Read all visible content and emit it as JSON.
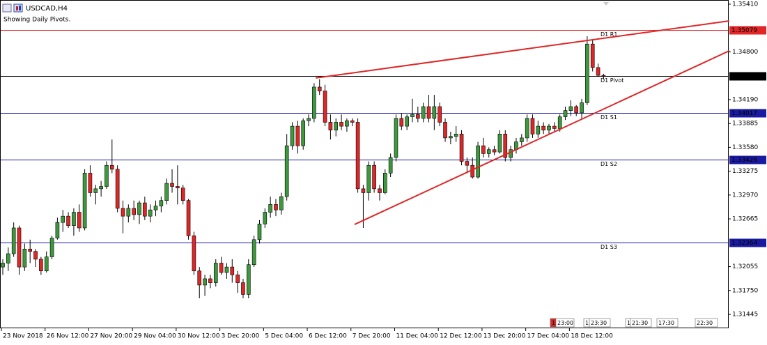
{
  "chart_data": {
    "type": "candlestick",
    "title": "USDCAD,H4",
    "subtitle": "Showing Daily Pivots.",
    "categories": [
      "23 Nov 2018",
      null,
      null,
      null,
      null,
      null,
      null,
      null,
      "26 Nov 12:00",
      null,
      null,
      null,
      null,
      null,
      null,
      null,
      "27 Nov 20:00",
      null,
      null,
      null,
      null,
      null,
      null,
      null,
      "29 Nov 04:00",
      null,
      null,
      null,
      null,
      null,
      null,
      null,
      "30 Nov 12:00",
      null,
      null,
      null,
      null,
      null,
      null,
      null,
      "3 Dec 20:00",
      null,
      null,
      null,
      null,
      null,
      null,
      null,
      "5 Dec 04:00",
      null,
      null,
      null,
      null,
      null,
      null,
      null,
      "6 Dec 12:00",
      null,
      null,
      null,
      null,
      null,
      null,
      null,
      "7 Dec 20:00",
      null,
      null,
      null,
      null,
      null,
      null,
      null,
      "11 Dec 04:00",
      null,
      null,
      null,
      null,
      null,
      null,
      null,
      "12 Dec 12:00",
      null,
      null,
      null,
      null,
      null,
      null,
      null,
      "13 Dec 20:00",
      null,
      null,
      null,
      null,
      null,
      null,
      null,
      "17 Dec 04:00",
      null,
      null,
      null,
      null,
      null,
      null,
      null,
      "18 Dec 12:00",
      null,
      null,
      null,
      null,
      null,
      null
    ],
    "open": [
      1.3205,
      1.321,
      1.3222,
      1.3255,
      1.3205,
      1.3228,
      1.3225,
      1.3215,
      1.32,
      1.3218,
      1.3242,
      1.3262,
      1.327,
      1.3258,
      1.3275,
      1.3255,
      1.3325,
      1.33,
      1.3305,
      1.3308,
      1.3335,
      1.333,
      1.328,
      1.327,
      1.328,
      1.3272,
      1.3287,
      1.327,
      1.3278,
      1.3283,
      1.329,
      1.3312,
      1.3308,
      1.3306,
      1.329,
      1.3245,
      1.32,
      1.3182,
      1.319,
      1.3185,
      1.321,
      1.3198,
      1.3205,
      1.3195,
      1.3185,
      1.317,
      1.3208,
      1.324,
      1.326,
      1.3275,
      1.3285,
      1.3278,
      1.3295,
      1.336,
      1.3385,
      1.336,
      1.3392,
      1.3395,
      1.3435,
      1.343,
      1.339,
      1.338,
      1.339,
      1.3385,
      1.3392,
      1.339,
      1.3305,
      1.33,
      1.3335,
      1.3305,
      1.33,
      1.3325,
      1.3345,
      1.3395,
      1.3385,
      1.3397,
      1.34,
      1.3395,
      1.341,
      1.3395,
      1.341,
      1.339,
      1.337,
      1.3372,
      1.3375,
      1.334,
      1.3335,
      1.332,
      1.336,
      1.335,
      1.3355,
      1.3352,
      1.3375,
      1.3345,
      1.3355,
      1.3365,
      1.337,
      1.3395,
      1.3375,
      1.3385,
      1.338,
      1.3385,
      1.3382,
      1.3397,
      1.3405,
      1.341,
      1.3402,
      1.3415,
      1.349,
      1.346,
      1.345
    ],
    "high": [
      1.3215,
      1.323,
      1.3262,
      1.3258,
      1.3235,
      1.324,
      1.3228,
      1.3218,
      1.3225,
      1.3245,
      1.3268,
      1.3278,
      1.3275,
      1.328,
      1.3285,
      1.333,
      1.3335,
      1.331,
      1.3315,
      1.334,
      1.3368,
      1.3335,
      1.329,
      1.3285,
      1.329,
      1.329,
      1.3295,
      1.3285,
      1.329,
      1.3295,
      1.3318,
      1.333,
      1.3335,
      1.331,
      1.3292,
      1.325,
      1.3205,
      1.3195,
      1.3195,
      1.3215,
      1.3218,
      1.321,
      1.3215,
      1.32,
      1.319,
      1.3215,
      1.3245,
      1.3265,
      1.328,
      1.3295,
      1.3292,
      1.33,
      1.3375,
      1.339,
      1.3392,
      1.3395,
      1.34,
      1.344,
      1.3445,
      1.3438,
      1.34,
      1.3395,
      1.34,
      1.3395,
      1.3395,
      1.3395,
      1.331,
      1.334,
      1.334,
      1.331,
      1.333,
      1.335,
      1.34,
      1.3402,
      1.34,
      1.342,
      1.341,
      1.3415,
      1.3425,
      1.3425,
      1.3415,
      1.3395,
      1.3378,
      1.3385,
      1.338,
      1.3345,
      1.3345,
      1.3365,
      1.337,
      1.3358,
      1.336,
      1.338,
      1.338,
      1.336,
      1.337,
      1.3375,
      1.34,
      1.34,
      1.3392,
      1.339,
      1.3388,
      1.339,
      1.34,
      1.341,
      1.3418,
      1.3412,
      1.342,
      1.35,
      1.3496,
      1.3465,
      1.3452
    ],
    "low": [
      1.3195,
      1.32,
      1.3218,
      1.3195,
      1.32,
      1.321,
      1.3205,
      1.3195,
      1.3198,
      1.3215,
      1.324,
      1.325,
      1.3255,
      1.3245,
      1.325,
      1.3252,
      1.3295,
      1.3285,
      1.3295,
      1.3305,
      1.3325,
      1.3275,
      1.3248,
      1.3262,
      1.3265,
      1.326,
      1.3265,
      1.3262,
      1.327,
      1.3275,
      1.3285,
      1.33,
      1.3285,
      1.3285,
      1.324,
      1.3195,
      1.3165,
      1.3168,
      1.3178,
      1.318,
      1.3195,
      1.319,
      1.3185,
      1.3172,
      1.3165,
      1.3165,
      1.3205,
      1.3235,
      1.3255,
      1.3268,
      1.327,
      1.3272,
      1.329,
      1.3355,
      1.335,
      1.3355,
      1.3385,
      1.339,
      1.3425,
      1.3385,
      1.3368,
      1.3372,
      1.338,
      1.3378,
      1.3385,
      1.33,
      1.3255,
      1.329,
      1.33,
      1.329,
      1.3298,
      1.332,
      1.334,
      1.338,
      1.338,
      1.339,
      1.339,
      1.339,
      1.339,
      1.338,
      1.3385,
      1.3365,
      1.3362,
      1.3365,
      1.3335,
      1.3325,
      1.3318,
      1.3318,
      1.3345,
      1.3345,
      1.3348,
      1.335,
      1.334,
      1.334,
      1.335,
      1.336,
      1.3365,
      1.337,
      1.337,
      1.3375,
      1.3375,
      1.3378,
      1.3378,
      1.3393,
      1.3398,
      1.3398,
      1.3395,
      1.3412,
      1.3455,
      1.3448,
      1.3445
    ],
    "close": [
      1.321,
      1.3222,
      1.3255,
      1.3205,
      1.3228,
      1.3225,
      1.3215,
      1.32,
      1.3218,
      1.3242,
      1.3262,
      1.327,
      1.3258,
      1.3275,
      1.3255,
      1.3325,
      1.33,
      1.3305,
      1.3308,
      1.3335,
      1.333,
      1.328,
      1.327,
      1.328,
      1.3272,
      1.3287,
      1.327,
      1.3278,
      1.3283,
      1.329,
      1.3312,
      1.3308,
      1.3306,
      1.329,
      1.3245,
      1.32,
      1.3182,
      1.319,
      1.3185,
      1.321,
      1.3198,
      1.3205,
      1.3195,
      1.3185,
      1.317,
      1.3208,
      1.324,
      1.326,
      1.3275,
      1.3285,
      1.3278,
      1.3295,
      1.336,
      1.3385,
      1.336,
      1.3392,
      1.3395,
      1.3435,
      1.343,
      1.339,
      1.338,
      1.339,
      1.3385,
      1.3392,
      1.339,
      1.3305,
      1.33,
      1.3335,
      1.3305,
      1.33,
      1.3325,
      1.3345,
      1.3395,
      1.3385,
      1.3397,
      1.34,
      1.3395,
      1.341,
      1.3395,
      1.341,
      1.339,
      1.337,
      1.3372,
      1.3375,
      1.334,
      1.3335,
      1.332,
      1.336,
      1.335,
      1.3355,
      1.3352,
      1.3375,
      1.3345,
      1.3355,
      1.3365,
      1.337,
      1.3395,
      1.3375,
      1.3385,
      1.338,
      1.3385,
      1.3382,
      1.3397,
      1.3405,
      1.341,
      1.3402,
      1.3415,
      1.349,
      1.346,
      1.345,
      1.3449
    ],
    "up_color": "#3c9a3c",
    "down_color": "#e02626",
    "ylim": [
      1.31276,
      1.35463
    ],
    "yticks": [
      {
        "value": 1.3541,
        "label": "1.35410"
      },
      {
        "value": 1.348,
        "label": "1.34800"
      },
      {
        "value": 1.3419,
        "label": "1.34190"
      },
      1.33885,
      {
        "value": 1.3358,
        "label": "1.33580"
      },
      1.33275,
      {
        "value": 1.3297,
        "label": "1.32970"
      },
      1.32665,
      1.32055,
      {
        "value": 1.3175,
        "label": "1.31750"
      },
      1.31445
    ],
    "pivots": [
      {
        "name": "D1 R1",
        "value": 1.35079,
        "color": "#e02626",
        "show_name": true
      },
      {
        "name": "D1 Pivot",
        "value": 1.34488,
        "color": "#000000",
        "show_name": true
      },
      {
        "name": "D1 S1",
        "value": 1.34017,
        "color": "#1a1aa0",
        "show_name": true
      },
      {
        "name": "D1 S2",
        "value": 1.33426,
        "color": "#1a1aa0",
        "show_name": true
      },
      {
        "name": "D1 S3",
        "value": 1.32364,
        "color": "#1a1aa0",
        "show_name": true
      }
    ],
    "trendlines": [
      {
        "color": "#e02626",
        "x": [
          57.3,
          133
        ],
        "y": [
          1.34466,
          1.35196
        ]
      },
      {
        "color": "#e02626",
        "x": [
          64.4,
          133
        ],
        "y": [
          1.32594,
          1.34813
        ]
      }
    ],
    "toolbar": [
      "1",
      "23:00",
      "15",
      "23:30",
      "1",
      "21:30",
      "17:30",
      "22:30"
    ]
  }
}
